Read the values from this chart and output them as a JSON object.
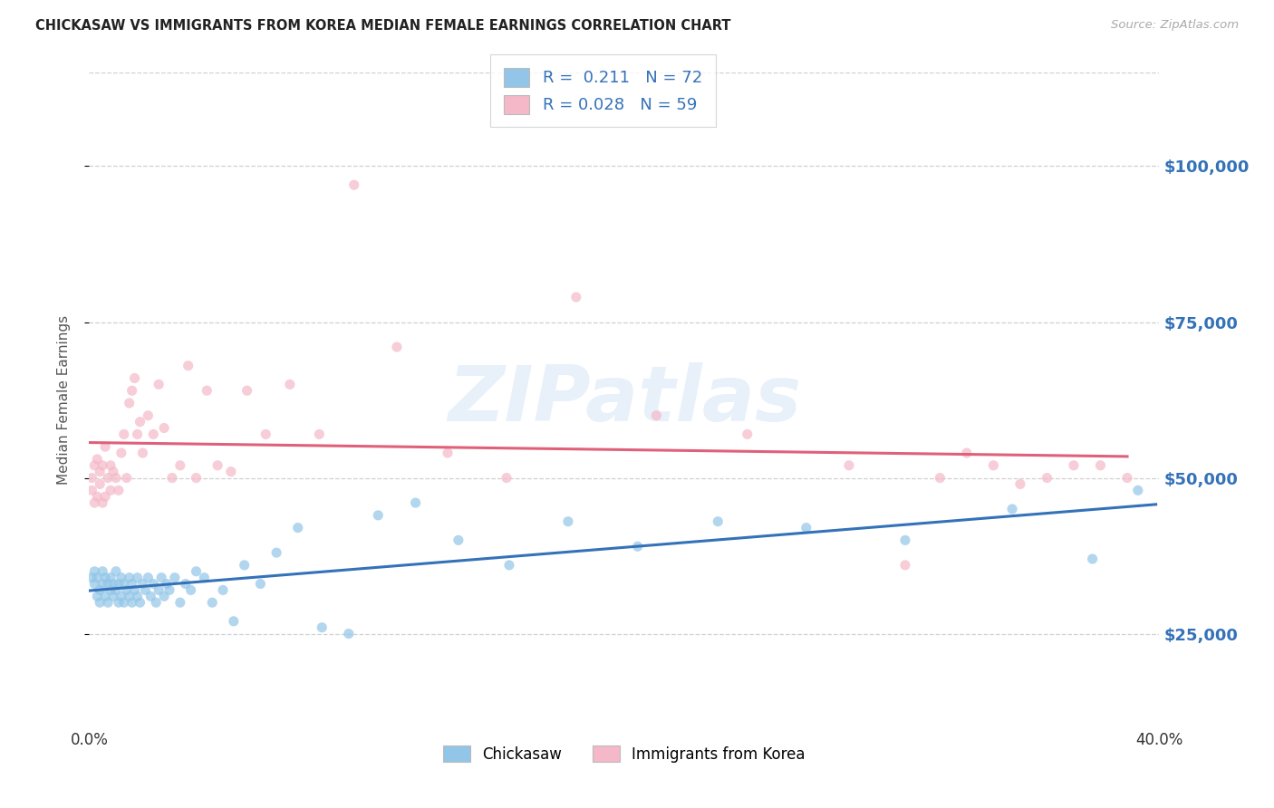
{
  "title": "CHICKASAW VS IMMIGRANTS FROM KOREA MEDIAN FEMALE EARNINGS CORRELATION CHART",
  "source": "Source: ZipAtlas.com",
  "ylabel": "Median Female Earnings",
  "xlim": [
    0.0,
    0.4
  ],
  "ylim": [
    10000,
    115000
  ],
  "yticks": [
    25000,
    50000,
    75000,
    100000
  ],
  "ytick_labels": [
    "$25,000",
    "$50,000",
    "$75,000",
    "$100,000"
  ],
  "xtick_vals": [
    0.0,
    0.1,
    0.2,
    0.3,
    0.4
  ],
  "xtick_labels": [
    "0.0%",
    "",
    "",
    "",
    "40.0%"
  ],
  "legend_label_1": "Chickasaw",
  "legend_label_2": "Immigrants from Korea",
  "R1": 0.211,
  "N1": 72,
  "R2": 0.028,
  "N2": 59,
  "color_blue": "#92c5e8",
  "color_pink": "#f4b8c8",
  "line_blue": "#3472b8",
  "line_pink": "#e0607a",
  "scatter_alpha": 0.7,
  "scatter_size": 65,
  "watermark": "ZIPatlas",
  "background_color": "#ffffff",
  "chick_x": [
    0.001,
    0.002,
    0.002,
    0.003,
    0.003,
    0.004,
    0.004,
    0.005,
    0.005,
    0.006,
    0.006,
    0.007,
    0.007,
    0.008,
    0.008,
    0.009,
    0.009,
    0.01,
    0.01,
    0.011,
    0.011,
    0.012,
    0.012,
    0.013,
    0.013,
    0.014,
    0.015,
    0.015,
    0.016,
    0.016,
    0.017,
    0.018,
    0.018,
    0.019,
    0.02,
    0.021,
    0.022,
    0.023,
    0.024,
    0.025,
    0.026,
    0.027,
    0.028,
    0.029,
    0.03,
    0.032,
    0.034,
    0.036,
    0.038,
    0.04,
    0.043,
    0.046,
    0.05,
    0.054,
    0.058,
    0.064,
    0.07,
    0.078,
    0.087,
    0.097,
    0.108,
    0.122,
    0.138,
    0.157,
    0.179,
    0.205,
    0.235,
    0.268,
    0.305,
    0.345,
    0.375,
    0.392
  ],
  "chick_y": [
    34000,
    33000,
    35000,
    31000,
    34000,
    32000,
    30000,
    35000,
    33000,
    31000,
    34000,
    30000,
    33000,
    32000,
    34000,
    31000,
    33000,
    32000,
    35000,
    30000,
    33000,
    31000,
    34000,
    30000,
    33000,
    32000,
    31000,
    34000,
    30000,
    33000,
    32000,
    31000,
    34000,
    30000,
    33000,
    32000,
    34000,
    31000,
    33000,
    30000,
    32000,
    34000,
    31000,
    33000,
    32000,
    34000,
    30000,
    33000,
    32000,
    35000,
    34000,
    30000,
    32000,
    27000,
    36000,
    33000,
    38000,
    42000,
    26000,
    25000,
    44000,
    46000,
    40000,
    36000,
    43000,
    39000,
    43000,
    42000,
    40000,
    45000,
    37000,
    48000
  ],
  "korea_x": [
    0.001,
    0.001,
    0.002,
    0.002,
    0.003,
    0.003,
    0.004,
    0.004,
    0.005,
    0.005,
    0.006,
    0.006,
    0.007,
    0.008,
    0.008,
    0.009,
    0.01,
    0.011,
    0.012,
    0.013,
    0.014,
    0.015,
    0.016,
    0.017,
    0.018,
    0.019,
    0.02,
    0.022,
    0.024,
    0.026,
    0.028,
    0.031,
    0.034,
    0.037,
    0.04,
    0.044,
    0.048,
    0.053,
    0.059,
    0.066,
    0.075,
    0.086,
    0.099,
    0.115,
    0.134,
    0.156,
    0.182,
    0.212,
    0.246,
    0.284,
    0.305,
    0.318,
    0.328,
    0.338,
    0.348,
    0.358,
    0.368,
    0.378,
    0.388
  ],
  "korea_y": [
    50000,
    48000,
    52000,
    46000,
    53000,
    47000,
    51000,
    49000,
    52000,
    46000,
    55000,
    47000,
    50000,
    52000,
    48000,
    51000,
    50000,
    48000,
    54000,
    57000,
    50000,
    62000,
    64000,
    66000,
    57000,
    59000,
    54000,
    60000,
    57000,
    65000,
    58000,
    50000,
    52000,
    68000,
    50000,
    64000,
    52000,
    51000,
    64000,
    57000,
    65000,
    57000,
    97000,
    71000,
    54000,
    50000,
    79000,
    60000,
    57000,
    52000,
    36000,
    50000,
    54000,
    52000,
    49000,
    50000,
    52000,
    52000,
    50000
  ]
}
